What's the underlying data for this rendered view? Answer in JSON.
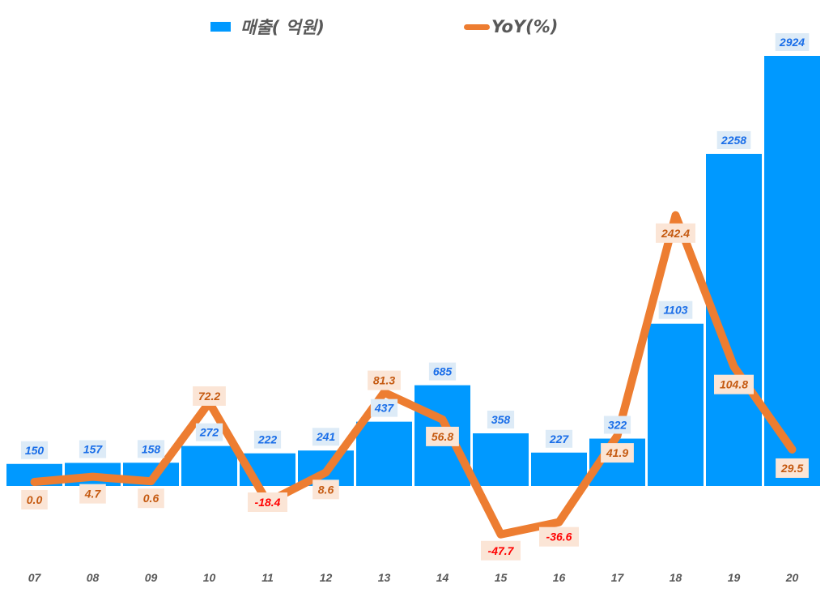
{
  "legend": {
    "bar_label": "매출( 억원)",
    "line_label": "YoY(%)"
  },
  "colors": {
    "bar": "#0099FF",
    "line": "#ED7D31",
    "bar_label_text": "#1A6EE8",
    "bar_label_bg": "#DDEBF7",
    "yoy_label_text": "#C55A11",
    "yoy_label_negative_text": "#FF0000",
    "yoy_label_bg": "#FBE5D6",
    "axis_text": "#595959"
  },
  "chart_data": {
    "type": "bar+line",
    "title": "",
    "xlabel": "",
    "ylabel": "",
    "categories": [
      "07",
      "08",
      "09",
      "10",
      "11",
      "12",
      "13",
      "14",
      "15",
      "16",
      "17",
      "18",
      "19",
      "20"
    ],
    "series": [
      {
        "name": "매출( 억원)",
        "type": "bar",
        "axis": "primary",
        "values": [
          150,
          157,
          158,
          272,
          222,
          241,
          437,
          685,
          358,
          227,
          322,
          1103,
          2258,
          2924
        ]
      },
      {
        "name": "YoY(%)",
        "type": "line",
        "axis": "secondary",
        "values": [
          0.0,
          4.7,
          0.6,
          72.2,
          -18.4,
          8.6,
          81.3,
          56.8,
          -47.7,
          -36.6,
          41.9,
          242.4,
          104.8,
          29.5
        ]
      }
    ],
    "legend_position": "top",
    "grid": false,
    "data_labels": true
  }
}
